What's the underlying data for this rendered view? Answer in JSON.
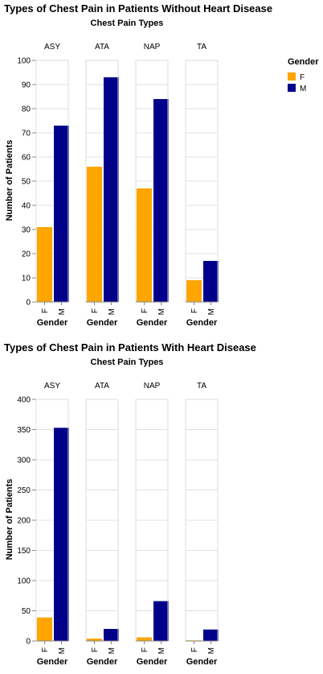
{
  "legend": {
    "title": "Gender",
    "items": [
      {
        "label": "F",
        "color": "#FFA500"
      },
      {
        "label": "M",
        "color": "#00008B"
      }
    ]
  },
  "chart_data": [
    {
      "type": "bar",
      "title": "Types of Chest Pain in Patients Without Heart Disease",
      "facet_title": "Chest Pain Types",
      "facets": [
        "ASY",
        "ATA",
        "NAP",
        "TA"
      ],
      "categories": [
        "F",
        "M"
      ],
      "xlabel": "Gender",
      "ylabel": "Number of Patients",
      "ylim": [
        0,
        100
      ],
      "yticks": [
        0,
        10,
        20,
        30,
        40,
        50,
        60,
        70,
        80,
        90,
        100
      ],
      "series": [
        {
          "facet": "ASY",
          "values": [
            31,
            73
          ]
        },
        {
          "facet": "ATA",
          "values": [
            56,
            93
          ]
        },
        {
          "facet": "NAP",
          "values": [
            47,
            84
          ]
        },
        {
          "facet": "TA",
          "values": [
            9,
            17
          ]
        }
      ],
      "grid": true,
      "legend_position": "right"
    },
    {
      "type": "bar",
      "title": "Types of Chest Pain in Patients With Heart Disease",
      "facet_title": "Chest Pain Types",
      "facets": [
        "ASY",
        "ATA",
        "NAP",
        "TA"
      ],
      "categories": [
        "F",
        "M"
      ],
      "xlabel": "Gender",
      "ylabel": "Number of Patients",
      "ylim": [
        0,
        400
      ],
      "yticks": [
        0,
        50,
        100,
        150,
        200,
        250,
        300,
        350,
        400
      ],
      "series": [
        {
          "facet": "ASY",
          "values": [
            39,
            353
          ]
        },
        {
          "facet": "ATA",
          "values": [
            4,
            20
          ]
        },
        {
          "facet": "NAP",
          "values": [
            6,
            66
          ]
        },
        {
          "facet": "TA",
          "values": [
            1,
            19
          ]
        }
      ],
      "grid": true,
      "legend_position": "none"
    }
  ]
}
